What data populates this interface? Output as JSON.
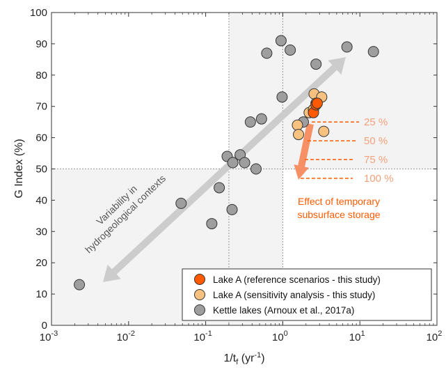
{
  "chart_data": {
    "type": "scatter",
    "xlabel": "1/t",
    "xlabel_sub": "f",
    "xlabel_unit_pre": " (yr",
    "xlabel_unit_sup": "-1",
    "xlabel_unit_post": ")",
    "ylabel": "G Index (%)",
    "xscale": "log",
    "xlim": [
      0.001,
      100
    ],
    "ylim": [
      0,
      100
    ],
    "xtick_base": "10",
    "xtick_exponents": [
      "-3",
      "-2",
      "-1",
      "0",
      "1",
      "2"
    ],
    "yticks": [
      "0",
      "10",
      "20",
      "30",
      "40",
      "50",
      "60",
      "70",
      "80",
      "90",
      "100"
    ],
    "grid": false,
    "reference_lines": {
      "x": 0.2,
      "x2": 1,
      "y": 50
    },
    "shaded_quadrants": "top-right and bottom-left",
    "legend_position": "bottom-right",
    "series": [
      {
        "name": "Kettle lakes (Arnoux et al., 2017a)",
        "color": "#9e9e9e",
        "points": [
          [
            0.0023,
            13
          ],
          [
            0.048,
            39
          ],
          [
            0.12,
            32.5
          ],
          [
            0.15,
            44
          ],
          [
            0.19,
            54
          ],
          [
            0.22,
            37
          ],
          [
            0.225,
            52
          ],
          [
            0.28,
            54.5
          ],
          [
            0.32,
            52
          ],
          [
            0.38,
            65
          ],
          [
            0.45,
            50
          ],
          [
            0.53,
            66
          ],
          [
            0.62,
            87
          ],
          [
            0.95,
            91
          ],
          [
            0.98,
            73
          ],
          [
            1.25,
            88
          ],
          [
            1.85,
            65
          ],
          [
            2.7,
            83.5
          ],
          [
            6.8,
            89
          ],
          [
            15,
            87.5
          ]
        ]
      },
      {
        "name": "Lake A (sensitivity analysis - this study)",
        "color": "#f7c17f",
        "points": [
          [
            1.55,
            64
          ],
          [
            1.6,
            61
          ],
          [
            2.2,
            68
          ],
          [
            2.5,
            69
          ],
          [
            2.55,
            74
          ],
          [
            2.7,
            71
          ],
          [
            3.2,
            73
          ],
          [
            3.4,
            62
          ]
        ]
      },
      {
        "name": "Lake A (reference scenarios - this study)",
        "color": "#ff5a00",
        "points": [
          [
            2.5,
            68
          ],
          [
            2.7,
            70.5
          ],
          [
            2.8,
            71
          ]
        ]
      }
    ],
    "annotations": {
      "variability_line1": "Variability in",
      "variability_line2": "hydrogeological contexts",
      "storage_line1": "Effect of temporary",
      "storage_line2": "subsurface storage",
      "storage_levels": [
        {
          "label": "25 %",
          "y": 65
        },
        {
          "label": "50 %",
          "y": 59
        },
        {
          "label": "75 %",
          "y": 53
        },
        {
          "label": "100 %",
          "y": 47
        }
      ]
    }
  }
}
